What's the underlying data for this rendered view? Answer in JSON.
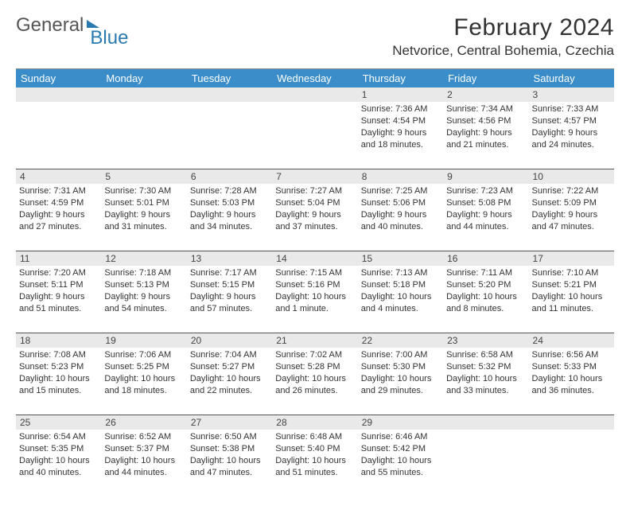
{
  "logo": {
    "text1": "General",
    "text2": "Blue"
  },
  "title": "February 2024",
  "location": "Netvorice, Central Bohemia, Czechia",
  "weekdays": [
    "Sunday",
    "Monday",
    "Tuesday",
    "Wednesday",
    "Thursday",
    "Friday",
    "Saturday"
  ],
  "colors": {
    "header_bg": "#3a8dc8",
    "daynum_bg": "#e9e9e9",
    "divider": "#555555",
    "logo_blue": "#2a7ab0"
  },
  "weeks": [
    [
      {},
      {},
      {},
      {},
      {
        "day": "1",
        "sunrise": "Sunrise: 7:36 AM",
        "sunset": "Sunset: 4:54 PM",
        "d1": "Daylight: 9 hours",
        "d2": "and 18 minutes."
      },
      {
        "day": "2",
        "sunrise": "Sunrise: 7:34 AM",
        "sunset": "Sunset: 4:56 PM",
        "d1": "Daylight: 9 hours",
        "d2": "and 21 minutes."
      },
      {
        "day": "3",
        "sunrise": "Sunrise: 7:33 AM",
        "sunset": "Sunset: 4:57 PM",
        "d1": "Daylight: 9 hours",
        "d2": "and 24 minutes."
      }
    ],
    [
      {
        "day": "4",
        "sunrise": "Sunrise: 7:31 AM",
        "sunset": "Sunset: 4:59 PM",
        "d1": "Daylight: 9 hours",
        "d2": "and 27 minutes."
      },
      {
        "day": "5",
        "sunrise": "Sunrise: 7:30 AM",
        "sunset": "Sunset: 5:01 PM",
        "d1": "Daylight: 9 hours",
        "d2": "and 31 minutes."
      },
      {
        "day": "6",
        "sunrise": "Sunrise: 7:28 AM",
        "sunset": "Sunset: 5:03 PM",
        "d1": "Daylight: 9 hours",
        "d2": "and 34 minutes."
      },
      {
        "day": "7",
        "sunrise": "Sunrise: 7:27 AM",
        "sunset": "Sunset: 5:04 PM",
        "d1": "Daylight: 9 hours",
        "d2": "and 37 minutes."
      },
      {
        "day": "8",
        "sunrise": "Sunrise: 7:25 AM",
        "sunset": "Sunset: 5:06 PM",
        "d1": "Daylight: 9 hours",
        "d2": "and 40 minutes."
      },
      {
        "day": "9",
        "sunrise": "Sunrise: 7:23 AM",
        "sunset": "Sunset: 5:08 PM",
        "d1": "Daylight: 9 hours",
        "d2": "and 44 minutes."
      },
      {
        "day": "10",
        "sunrise": "Sunrise: 7:22 AM",
        "sunset": "Sunset: 5:09 PM",
        "d1": "Daylight: 9 hours",
        "d2": "and 47 minutes."
      }
    ],
    [
      {
        "day": "11",
        "sunrise": "Sunrise: 7:20 AM",
        "sunset": "Sunset: 5:11 PM",
        "d1": "Daylight: 9 hours",
        "d2": "and 51 minutes."
      },
      {
        "day": "12",
        "sunrise": "Sunrise: 7:18 AM",
        "sunset": "Sunset: 5:13 PM",
        "d1": "Daylight: 9 hours",
        "d2": "and 54 minutes."
      },
      {
        "day": "13",
        "sunrise": "Sunrise: 7:17 AM",
        "sunset": "Sunset: 5:15 PM",
        "d1": "Daylight: 9 hours",
        "d2": "and 57 minutes."
      },
      {
        "day": "14",
        "sunrise": "Sunrise: 7:15 AM",
        "sunset": "Sunset: 5:16 PM",
        "d1": "Daylight: 10 hours",
        "d2": "and 1 minute."
      },
      {
        "day": "15",
        "sunrise": "Sunrise: 7:13 AM",
        "sunset": "Sunset: 5:18 PM",
        "d1": "Daylight: 10 hours",
        "d2": "and 4 minutes."
      },
      {
        "day": "16",
        "sunrise": "Sunrise: 7:11 AM",
        "sunset": "Sunset: 5:20 PM",
        "d1": "Daylight: 10 hours",
        "d2": "and 8 minutes."
      },
      {
        "day": "17",
        "sunrise": "Sunrise: 7:10 AM",
        "sunset": "Sunset: 5:21 PM",
        "d1": "Daylight: 10 hours",
        "d2": "and 11 minutes."
      }
    ],
    [
      {
        "day": "18",
        "sunrise": "Sunrise: 7:08 AM",
        "sunset": "Sunset: 5:23 PM",
        "d1": "Daylight: 10 hours",
        "d2": "and 15 minutes."
      },
      {
        "day": "19",
        "sunrise": "Sunrise: 7:06 AM",
        "sunset": "Sunset: 5:25 PM",
        "d1": "Daylight: 10 hours",
        "d2": "and 18 minutes."
      },
      {
        "day": "20",
        "sunrise": "Sunrise: 7:04 AM",
        "sunset": "Sunset: 5:27 PM",
        "d1": "Daylight: 10 hours",
        "d2": "and 22 minutes."
      },
      {
        "day": "21",
        "sunrise": "Sunrise: 7:02 AM",
        "sunset": "Sunset: 5:28 PM",
        "d1": "Daylight: 10 hours",
        "d2": "and 26 minutes."
      },
      {
        "day": "22",
        "sunrise": "Sunrise: 7:00 AM",
        "sunset": "Sunset: 5:30 PM",
        "d1": "Daylight: 10 hours",
        "d2": "and 29 minutes."
      },
      {
        "day": "23",
        "sunrise": "Sunrise: 6:58 AM",
        "sunset": "Sunset: 5:32 PM",
        "d1": "Daylight: 10 hours",
        "d2": "and 33 minutes."
      },
      {
        "day": "24",
        "sunrise": "Sunrise: 6:56 AM",
        "sunset": "Sunset: 5:33 PM",
        "d1": "Daylight: 10 hours",
        "d2": "and 36 minutes."
      }
    ],
    [
      {
        "day": "25",
        "sunrise": "Sunrise: 6:54 AM",
        "sunset": "Sunset: 5:35 PM",
        "d1": "Daylight: 10 hours",
        "d2": "and 40 minutes."
      },
      {
        "day": "26",
        "sunrise": "Sunrise: 6:52 AM",
        "sunset": "Sunset: 5:37 PM",
        "d1": "Daylight: 10 hours",
        "d2": "and 44 minutes."
      },
      {
        "day": "27",
        "sunrise": "Sunrise: 6:50 AM",
        "sunset": "Sunset: 5:38 PM",
        "d1": "Daylight: 10 hours",
        "d2": "and 47 minutes."
      },
      {
        "day": "28",
        "sunrise": "Sunrise: 6:48 AM",
        "sunset": "Sunset: 5:40 PM",
        "d1": "Daylight: 10 hours",
        "d2": "and 51 minutes."
      },
      {
        "day": "29",
        "sunrise": "Sunrise: 6:46 AM",
        "sunset": "Sunset: 5:42 PM",
        "d1": "Daylight: 10 hours",
        "d2": "and 55 minutes."
      },
      {},
      {}
    ]
  ]
}
